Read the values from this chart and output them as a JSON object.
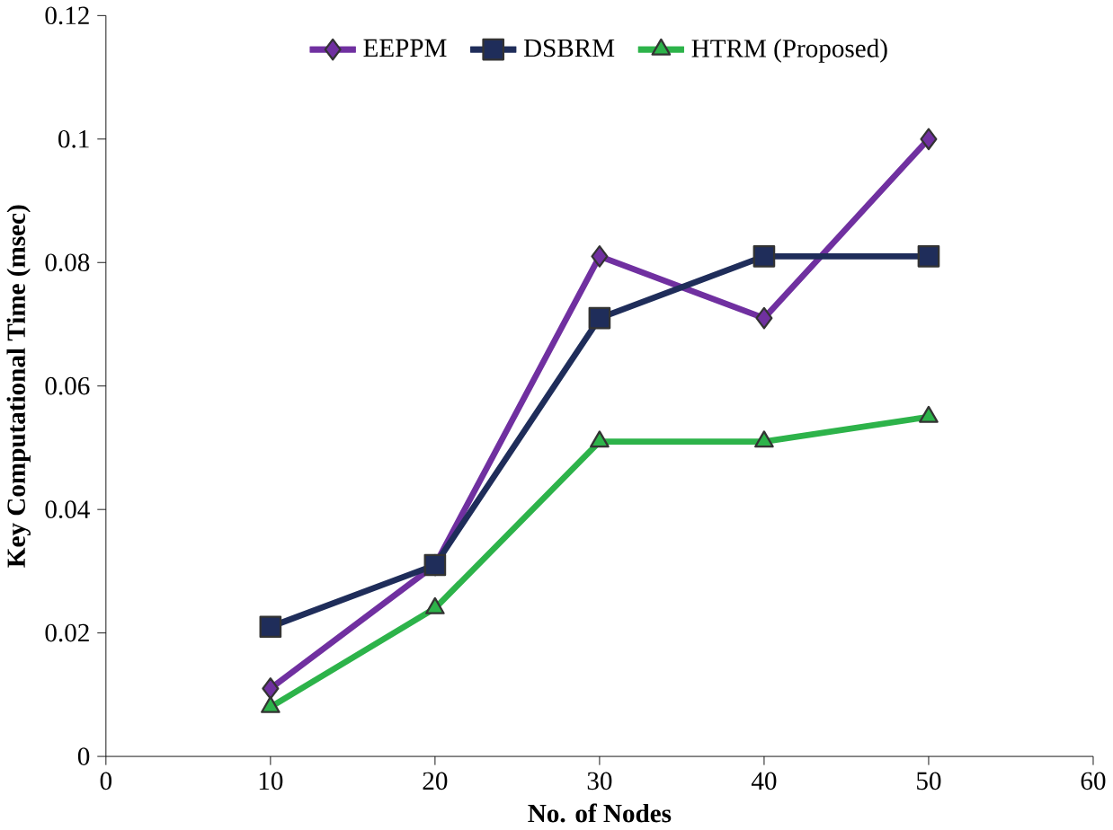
{
  "chart_data": {
    "type": "line",
    "xlabel": "No. of Nodes",
    "ylabel": "Key Computational Time (msec)",
    "x": [
      10,
      20,
      30,
      40,
      50
    ],
    "series": [
      {
        "name": "EEPPM",
        "color": "#7030a0",
        "marker": "diamond",
        "values": [
          0.011,
          0.031,
          0.081,
          0.071,
          0.1
        ]
      },
      {
        "name": "DSBRM",
        "color": "#1f2d5a",
        "marker": "square",
        "values": [
          0.021,
          0.031,
          0.071,
          0.081,
          0.081
        ]
      },
      {
        "name": "HTRM (Proposed)",
        "color": "#2db34a",
        "marker": "triangle",
        "values": [
          0.008,
          0.024,
          0.051,
          0.051,
          0.055
        ]
      }
    ],
    "xlim": [
      0,
      60
    ],
    "xticks": [
      0,
      10,
      20,
      30,
      40,
      50,
      60
    ],
    "ylim": [
      0,
      0.12
    ],
    "yticks": [
      0,
      0.02,
      0.04,
      0.06,
      0.08,
      0.1,
      0.12
    ],
    "grid": false,
    "legend": "top",
    "line_style": "solid"
  }
}
